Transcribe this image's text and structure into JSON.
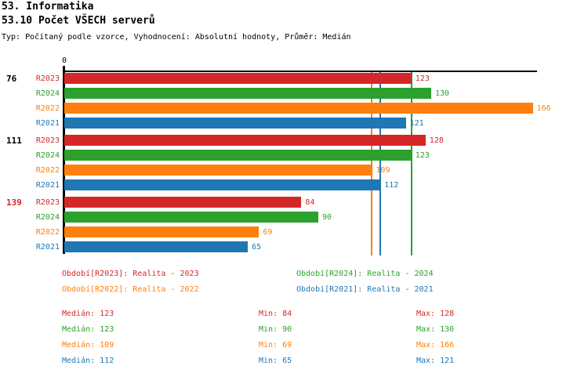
{
  "header": {
    "title": "53. Informatika",
    "subtitle": "53.10 Počet VŠECH serverů",
    "meta": "Typ: Počítaný podle vzorce, Vyhodnocení: Absolutní hodnoty, Průměr: Medián"
  },
  "colors": {
    "R2023": "#d62728",
    "R2024": "#2ca02c",
    "R2022": "#ff7f0e",
    "R2021": "#1f77b4",
    "axis": "#000000"
  },
  "chart_data": {
    "type": "bar",
    "orientation": "horizontal",
    "title": "53.10 Počet VŠECH serverů",
    "xlabel": "",
    "ylabel": "",
    "xlim": [
      0,
      167.5
    ],
    "x_tick_labels": [
      "0"
    ],
    "grid": false,
    "series_order": [
      "R2023",
      "R2024",
      "R2022",
      "R2021"
    ],
    "groups": [
      {
        "label": "76",
        "label_color": "#000000",
        "values": {
          "R2023": 123,
          "R2024": 130,
          "R2022": 166,
          "R2021": 121
        }
      },
      {
        "label": "111",
        "label_color": "#000000",
        "values": {
          "R2023": 128,
          "R2024": 123,
          "R2022": 109,
          "R2021": 112
        }
      },
      {
        "label": "139",
        "label_color": "#d62728",
        "values": {
          "R2023": 84,
          "R2024": 90,
          "R2022": 69,
          "R2021": 65
        }
      }
    ],
    "median_lines": [
      {
        "series": "R2023",
        "value": 123
      },
      {
        "series": "R2024",
        "value": 123
      },
      {
        "series": "R2022",
        "value": 109
      },
      {
        "series": "R2021",
        "value": 112
      }
    ]
  },
  "legend": {
    "items": [
      {
        "series": "R2023",
        "label": "Období[R2023]: Realita - 2023"
      },
      {
        "series": "R2024",
        "label": "Období[R2024]: Realita - 2024"
      },
      {
        "series": "R2022",
        "label": "Období[R2022]: Realita - 2022"
      },
      {
        "series": "R2021",
        "label": "Období[R2021]: Realita - 2021"
      }
    ]
  },
  "stats": {
    "labels": {
      "median": "Medián",
      "min": "Min",
      "max": "Max"
    },
    "rows": [
      {
        "series": "R2023",
        "median": 123,
        "min": 84,
        "max": 128
      },
      {
        "series": "R2024",
        "median": 123,
        "min": 90,
        "max": 130
      },
      {
        "series": "R2022",
        "median": 109,
        "min": 69,
        "max": 166
      },
      {
        "series": "R2021",
        "median": 112,
        "min": 65,
        "max": 121
      }
    ]
  }
}
